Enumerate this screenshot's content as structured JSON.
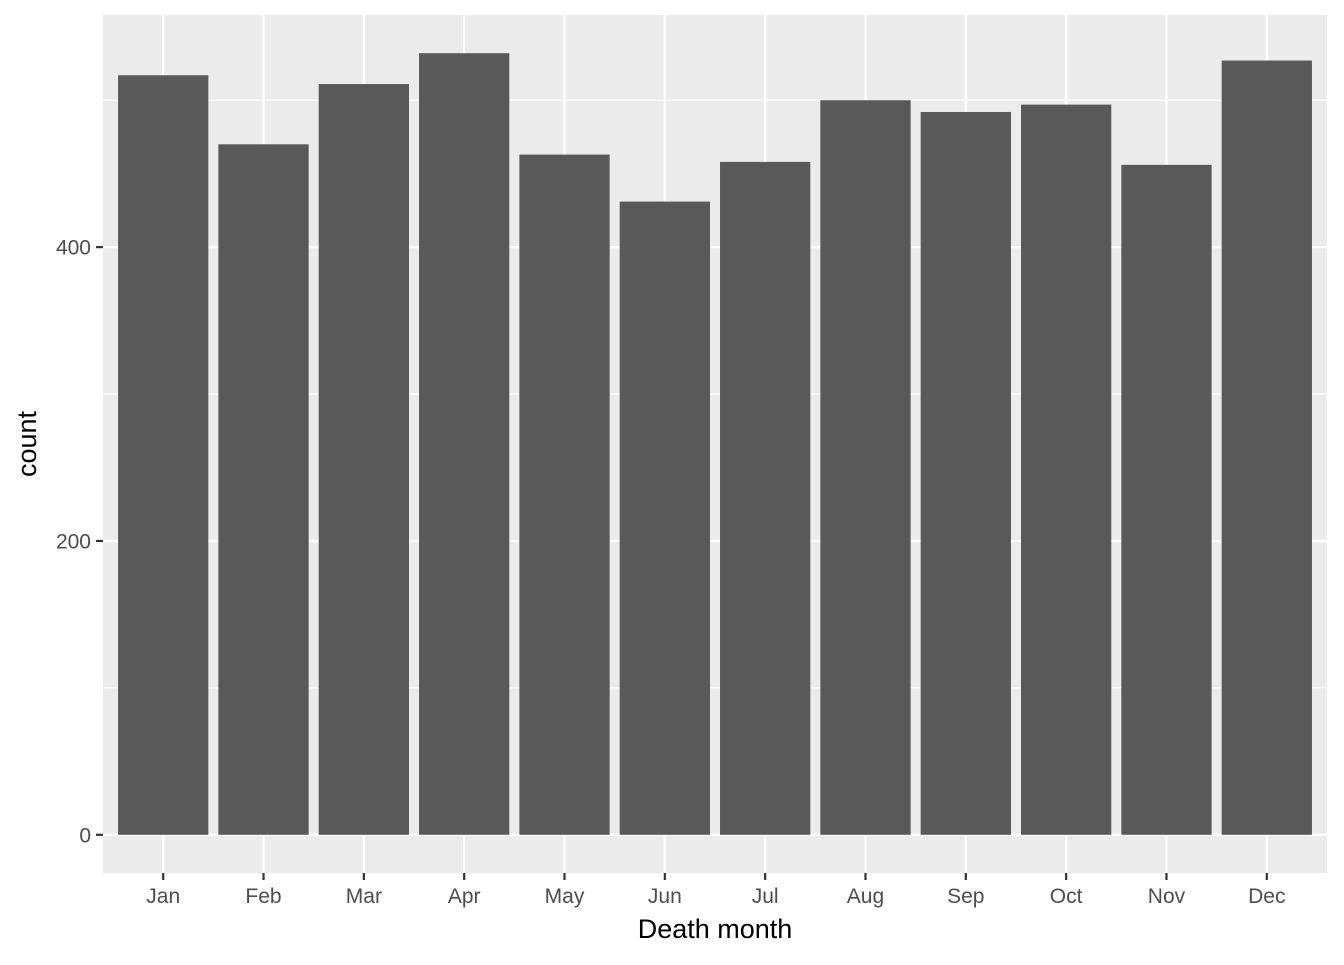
{
  "chart_data": {
    "type": "bar",
    "title": "",
    "xlabel": "Death month",
    "ylabel": "count",
    "categories": [
      "Jan",
      "Feb",
      "Mar",
      "Apr",
      "May",
      "Jun",
      "Jul",
      "Aug",
      "Sep",
      "Oct",
      "Nov",
      "Dec"
    ],
    "values": [
      517,
      470,
      511,
      532,
      463,
      431,
      458,
      500,
      492,
      497,
      456,
      527
    ],
    "ylim": [
      -26,
      558
    ],
    "yticks": [
      0,
      200,
      400
    ],
    "yticks_labels": [
      "0",
      "200",
      "400"
    ],
    "grid": true,
    "legend": "none",
    "colors": {
      "bar": "#595959",
      "panel_background": "#ebebeb",
      "grid_line": "#ffffff",
      "tick_text": "#4d4d4d",
      "tick_mark": "#333333"
    }
  }
}
